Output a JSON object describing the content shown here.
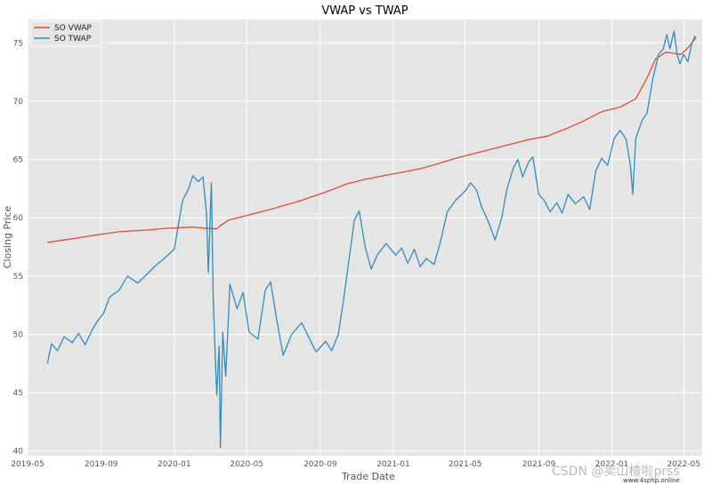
{
  "chart_data": {
    "type": "line",
    "title": "VWAP vs TWAP",
    "xlabel": "Trade Date",
    "ylabel": "Closing Price",
    "x_ticks": [
      "2019-05",
      "2019-09",
      "2020-01",
      "2020-05",
      "2020-09",
      "2021-01",
      "2021-05",
      "2021-09",
      "2022-01",
      "2022-05"
    ],
    "y_ticks": [
      40,
      45,
      50,
      55,
      60,
      65,
      70,
      75
    ],
    "xlim": [
      "2019-05-01",
      "2022-06-01"
    ],
    "ylim": [
      39.6,
      77.0
    ],
    "grid": true,
    "legend_position": "top-left",
    "series": [
      {
        "name": "SO VWAP",
        "color": "#e24a33",
        "points": [
          [
            "2019-06-03",
            57.9
          ],
          [
            "2019-07-15",
            58.2
          ],
          [
            "2019-08-20",
            58.5
          ],
          [
            "2019-10-01",
            58.8
          ],
          [
            "2019-11-15",
            58.95
          ],
          [
            "2019-12-20",
            59.1
          ],
          [
            "2020-01-31",
            59.2
          ],
          [
            "2020-02-25",
            59.1
          ],
          [
            "2020-03-12",
            59.05
          ],
          [
            "2020-03-20",
            59.4
          ],
          [
            "2020-04-01",
            59.8
          ],
          [
            "2020-05-01",
            60.2
          ],
          [
            "2020-06-15",
            60.8
          ],
          [
            "2020-08-01",
            61.5
          ],
          [
            "2020-09-15",
            62.3
          ],
          [
            "2020-10-15",
            62.9
          ],
          [
            "2020-11-15",
            63.3
          ],
          [
            "2020-12-15",
            63.6
          ],
          [
            "2021-01-15",
            63.9
          ],
          [
            "2021-02-15",
            64.2
          ],
          [
            "2021-03-15",
            64.6
          ],
          [
            "2021-04-15",
            65.1
          ],
          [
            "2021-05-15",
            65.5
          ],
          [
            "2021-06-15",
            65.9
          ],
          [
            "2021-07-15",
            66.3
          ],
          [
            "2021-08-15",
            66.7
          ],
          [
            "2021-09-15",
            67.0
          ],
          [
            "2021-10-15",
            67.6
          ],
          [
            "2021-11-15",
            68.3
          ],
          [
            "2021-12-15",
            69.1
          ],
          [
            "2022-01-15",
            69.5
          ],
          [
            "2022-02-10",
            70.2
          ],
          [
            "2022-03-01",
            72.0
          ],
          [
            "2022-03-15",
            73.6
          ],
          [
            "2022-04-01",
            74.2
          ],
          [
            "2022-04-15",
            74.1
          ],
          [
            "2022-04-26",
            74.0
          ],
          [
            "2022-05-05",
            74.4
          ],
          [
            "2022-05-15",
            75.0
          ],
          [
            "2022-05-22",
            75.5
          ]
        ]
      },
      {
        "name": "SO TWAP",
        "color": "#348abd",
        "points": [
          [
            "2019-06-03",
            47.5
          ],
          [
            "2019-06-10",
            49.2
          ],
          [
            "2019-06-20",
            48.6
          ],
          [
            "2019-07-01",
            49.8
          ],
          [
            "2019-07-15",
            49.3
          ],
          [
            "2019-07-25",
            50.1
          ],
          [
            "2019-08-05",
            49.1
          ],
          [
            "2019-08-15",
            50.2
          ],
          [
            "2019-08-25",
            51.1
          ],
          [
            "2019-09-05",
            51.8
          ],
          [
            "2019-09-15",
            53.2
          ],
          [
            "2019-10-01",
            53.8
          ],
          [
            "2019-10-15",
            55.0
          ],
          [
            "2019-11-01",
            54.4
          ],
          [
            "2019-11-15",
            55.1
          ],
          [
            "2019-12-01",
            55.9
          ],
          [
            "2019-12-15",
            56.5
          ],
          [
            "2020-01-01",
            57.3
          ],
          [
            "2020-01-15",
            61.5
          ],
          [
            "2020-01-25",
            62.5
          ],
          [
            "2020-02-01",
            63.6
          ],
          [
            "2020-02-10",
            63.1
          ],
          [
            "2020-02-18",
            63.5
          ],
          [
            "2020-02-24",
            60.3
          ],
          [
            "2020-02-27",
            55.3
          ],
          [
            "2020-03-03",
            63.0
          ],
          [
            "2020-03-06",
            53.3
          ],
          [
            "2020-03-09",
            48.9
          ],
          [
            "2020-03-12",
            44.8
          ],
          [
            "2020-03-16",
            49.0
          ],
          [
            "2020-03-18",
            40.3
          ],
          [
            "2020-03-22",
            50.2
          ],
          [
            "2020-03-27",
            46.4
          ],
          [
            "2020-04-03",
            54.3
          ],
          [
            "2020-04-15",
            52.2
          ],
          [
            "2020-04-25",
            53.6
          ],
          [
            "2020-05-05",
            50.2
          ],
          [
            "2020-05-20",
            49.6
          ],
          [
            "2020-06-01",
            53.8
          ],
          [
            "2020-06-10",
            54.5
          ],
          [
            "2020-06-20",
            51.3
          ],
          [
            "2020-07-01",
            48.2
          ],
          [
            "2020-07-15",
            50.0
          ],
          [
            "2020-08-01",
            51.0
          ],
          [
            "2020-08-15",
            49.5
          ],
          [
            "2020-08-25",
            48.5
          ],
          [
            "2020-09-10",
            49.4
          ],
          [
            "2020-09-20",
            48.6
          ],
          [
            "2020-10-01",
            50.0
          ],
          [
            "2020-10-10",
            53.0
          ],
          [
            "2020-10-20",
            56.8
          ],
          [
            "2020-10-28",
            59.8
          ],
          [
            "2020-11-05",
            60.6
          ],
          [
            "2020-11-15",
            57.5
          ],
          [
            "2020-11-25",
            55.6
          ],
          [
            "2020-12-05",
            56.8
          ],
          [
            "2020-12-20",
            57.8
          ],
          [
            "2021-01-05",
            56.8
          ],
          [
            "2021-01-15",
            57.4
          ],
          [
            "2021-01-25",
            56.1
          ],
          [
            "2021-02-05",
            57.3
          ],
          [
            "2021-02-15",
            55.8
          ],
          [
            "2021-02-25",
            56.5
          ],
          [
            "2021-03-10",
            56.0
          ],
          [
            "2021-03-20",
            57.8
          ],
          [
            "2021-04-01",
            60.5
          ],
          [
            "2021-04-15",
            61.5
          ],
          [
            "2021-05-01",
            62.3
          ],
          [
            "2021-05-10",
            63.0
          ],
          [
            "2021-05-20",
            62.4
          ],
          [
            "2021-05-28",
            61.0
          ],
          [
            "2021-06-10",
            59.5
          ],
          [
            "2021-06-20",
            58.1
          ],
          [
            "2021-07-01",
            60.0
          ],
          [
            "2021-07-10",
            62.5
          ],
          [
            "2021-07-20",
            64.2
          ],
          [
            "2021-07-28",
            65.0
          ],
          [
            "2021-08-05",
            63.5
          ],
          [
            "2021-08-15",
            64.8
          ],
          [
            "2021-08-22",
            65.2
          ],
          [
            "2021-09-01",
            62.0
          ],
          [
            "2021-09-10",
            61.5
          ],
          [
            "2021-09-20",
            60.5
          ],
          [
            "2021-10-01",
            61.3
          ],
          [
            "2021-10-10",
            60.4
          ],
          [
            "2021-10-20",
            62.0
          ],
          [
            "2021-11-01",
            61.2
          ],
          [
            "2021-11-15",
            61.8
          ],
          [
            "2021-11-25",
            60.7
          ],
          [
            "2021-12-05",
            64.0
          ],
          [
            "2021-12-15",
            65.1
          ],
          [
            "2021-12-25",
            64.5
          ],
          [
            "2022-01-05",
            66.8
          ],
          [
            "2022-01-15",
            67.5
          ],
          [
            "2022-01-25",
            66.7
          ],
          [
            "2022-02-01",
            64.5
          ],
          [
            "2022-02-05",
            62.0
          ],
          [
            "2022-02-10",
            66.8
          ],
          [
            "2022-02-20",
            68.3
          ],
          [
            "2022-03-01",
            69.0
          ],
          [
            "2022-03-10",
            71.8
          ],
          [
            "2022-03-20",
            74.0
          ],
          [
            "2022-03-28",
            74.5
          ],
          [
            "2022-04-03",
            75.7
          ],
          [
            "2022-04-08",
            74.5
          ],
          [
            "2022-04-15",
            76.0
          ],
          [
            "2022-04-20",
            74.0
          ],
          [
            "2022-04-25",
            73.2
          ],
          [
            "2022-05-01",
            74.0
          ],
          [
            "2022-05-08",
            73.4
          ],
          [
            "2022-05-15",
            75.0
          ],
          [
            "2022-05-20",
            75.6
          ]
        ]
      }
    ]
  },
  "watermark": {
    "text": "CSDN @卖山楂啦prss",
    "subtext": "www.4sphp.online"
  }
}
